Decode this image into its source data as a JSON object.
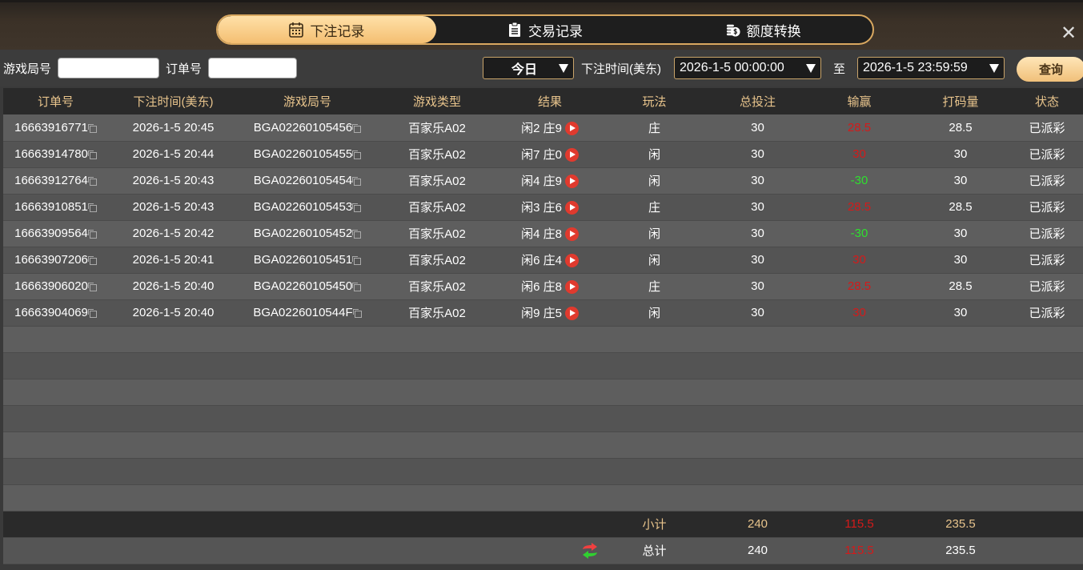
{
  "tabs": [
    {
      "label": "下注记录",
      "icon": "calendar-icon",
      "active": true
    },
    {
      "label": "交易记录",
      "icon": "clipboard-icon"
    },
    {
      "label": "额度转换",
      "icon": "coins-icon"
    }
  ],
  "filter": {
    "game_round_label": "游戏局号",
    "game_round_value": "",
    "order_label": "订单号",
    "order_value": "",
    "period": "今日",
    "time_label": "下注时间(美东)",
    "start": "2026-1-5 00:00:00",
    "to_label": "至",
    "end": "2026-1-5 23:59:59",
    "query_label": "查询"
  },
  "columns": [
    "订单号",
    "下注时间(美东)",
    "游戏局号",
    "游戏类型",
    "结果",
    "玩法",
    "总投注",
    "输赢",
    "打码量",
    "状态"
  ],
  "rows": [
    {
      "order": "16663916771",
      "time": "2026-1-5 20:45",
      "round": "BGA02260105456",
      "type": "百家乐A02",
      "result": "闲2 庄9",
      "bet": "庄",
      "total": "30",
      "win": "28.5",
      "win_color": "red",
      "turnover": "28.5",
      "status": "已派彩"
    },
    {
      "order": "16663914780",
      "time": "2026-1-5 20:44",
      "round": "BGA02260105455",
      "type": "百家乐A02",
      "result": "闲7 庄0",
      "bet": "闲",
      "total": "30",
      "win": "30",
      "win_color": "red",
      "turnover": "30",
      "status": "已派彩"
    },
    {
      "order": "16663912764",
      "time": "2026-1-5 20:43",
      "round": "BGA02260105454",
      "type": "百家乐A02",
      "result": "闲4 庄9",
      "bet": "闲",
      "total": "30",
      "win": "-30",
      "win_color": "green",
      "turnover": "30",
      "status": "已派彩"
    },
    {
      "order": "16663910851",
      "time": "2026-1-5 20:43",
      "round": "BGA02260105453",
      "type": "百家乐A02",
      "result": "闲3 庄6",
      "bet": "庄",
      "total": "30",
      "win": "28.5",
      "win_color": "red",
      "turnover": "28.5",
      "status": "已派彩"
    },
    {
      "order": "16663909564",
      "time": "2026-1-5 20:42",
      "round": "BGA02260105452",
      "type": "百家乐A02",
      "result": "闲4 庄8",
      "bet": "闲",
      "total": "30",
      "win": "-30",
      "win_color": "green",
      "turnover": "30",
      "status": "已派彩"
    },
    {
      "order": "16663907206",
      "time": "2026-1-5 20:41",
      "round": "BGA02260105451",
      "type": "百家乐A02",
      "result": "闲6 庄4",
      "bet": "闲",
      "total": "30",
      "win": "30",
      "win_color": "red",
      "turnover": "30",
      "status": "已派彩"
    },
    {
      "order": "16663906020",
      "time": "2026-1-5 20:40",
      "round": "BGA02260105450",
      "type": "百家乐A02",
      "result": "闲6 庄8",
      "bet": "庄",
      "total": "30",
      "win": "28.5",
      "win_color": "red",
      "turnover": "28.5",
      "status": "已派彩"
    },
    {
      "order": "16663904069",
      "time": "2026-1-5 20:40",
      "round": "BGA0226010544F",
      "type": "百家乐A02",
      "result": "闲9 庄5",
      "bet": "闲",
      "total": "30",
      "win": "30",
      "win_color": "red",
      "turnover": "30",
      "status": "已派彩"
    }
  ],
  "subtotal": {
    "label": "小计",
    "total": "240",
    "win": "115.5",
    "turnover": "235.5"
  },
  "grand_total": {
    "label": "总计",
    "total": "240",
    "win": "115.5",
    "turnover": "235.5"
  }
}
